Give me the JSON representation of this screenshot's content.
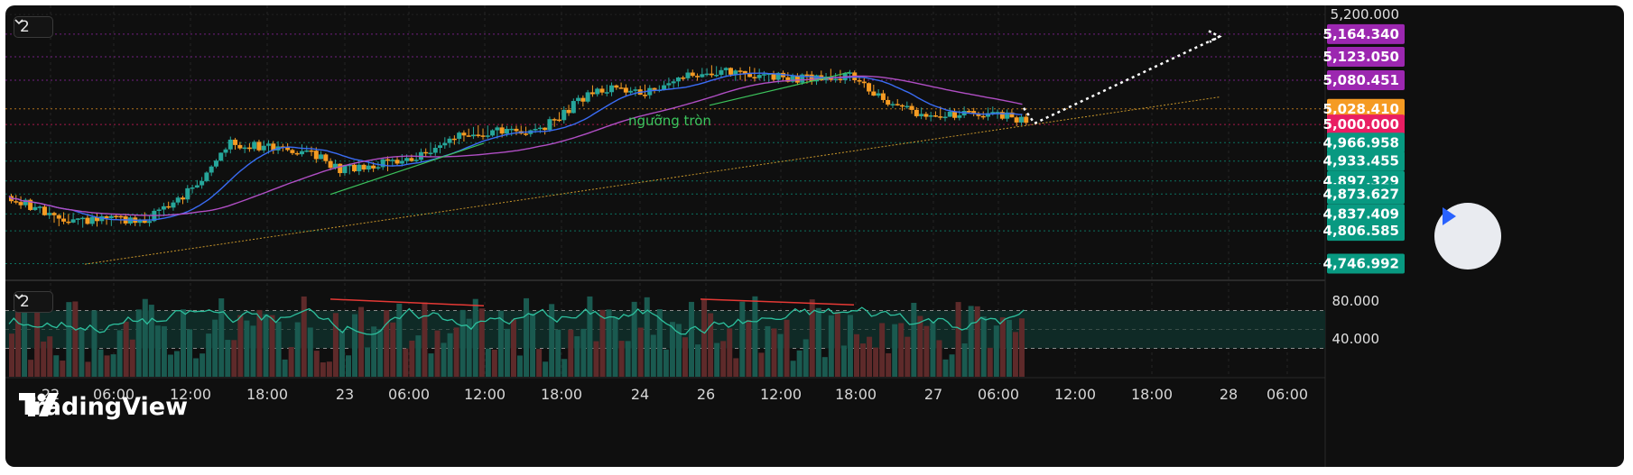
{
  "toolbar": {
    "main_pane_badge": "2",
    "indicator_pane_badge": "2"
  },
  "branding": {
    "logo_text": "TradingView"
  },
  "chart_data": [
    {
      "type": "candlestick",
      "title": "",
      "ylim": [
        4720,
        5210
      ],
      "x_ticks": [
        "22",
        "06:00",
        "12:00",
        "18:00",
        "23",
        "06:00",
        "12:00",
        "18:00",
        "24",
        "26",
        "12:00",
        "18:00",
        "27",
        "06:00",
        "12:00",
        "18:00",
        "28",
        "06:00"
      ],
      "price_levels": [
        {
          "label": "5,200.000",
          "value": 5200.0,
          "color": "none",
          "text_color": "#bbbbbb"
        },
        {
          "label": "5,164.340",
          "value": 5164.34,
          "color": "#9c27b0"
        },
        {
          "label": "5,123.050",
          "value": 5123.05,
          "color": "#9c27b0"
        },
        {
          "label": "5,080.451",
          "value": 5080.451,
          "color": "#9c27b0"
        },
        {
          "label": "5,028.410",
          "value": 5028.41,
          "color": "#f59b23"
        },
        {
          "label": "5,000.000",
          "value": 5000.0,
          "color": "#e91e63"
        },
        {
          "label": "4,966.958",
          "value": 4966.958,
          "color": "#089981"
        },
        {
          "label": "4,933.455",
          "value": 4933.455,
          "color": "#089981"
        },
        {
          "label": "4,897.329",
          "value": 4897.329,
          "color": "#089981"
        },
        {
          "label": "4,873.627",
          "value": 4873.627,
          "color": "#089981"
        },
        {
          "label": "4,837.409",
          "value": 4837.409,
          "color": "#089981"
        },
        {
          "label": "4,806.585",
          "value": 4806.585,
          "color": "#089981"
        },
        {
          "label": "4,746.992",
          "value": 4746.992,
          "color": "#089981"
        }
      ],
      "annotations": [
        {
          "text": "ngưỡng tròn",
          "price": 4995
        }
      ],
      "moving_averages": [
        {
          "color": "#3a6cf4",
          "period": "fast"
        },
        {
          "color": "#b04ec4",
          "period": "slow"
        }
      ],
      "colors": {
        "up": "#26a69a",
        "down": "#f59b23",
        "trendline": "#c8962b",
        "projection": "#ffffff"
      }
    },
    {
      "type": "oscillator",
      "y_ticks": [
        "80.000",
        "40.000"
      ],
      "ylim": [
        0,
        100
      ],
      "levels": [
        70,
        50,
        30
      ],
      "colors": {
        "line": "#2dbf9d",
        "volume_up": "#1a5a50",
        "volume_down": "#5e2a2a",
        "divergence": "#e53935"
      }
    }
  ]
}
